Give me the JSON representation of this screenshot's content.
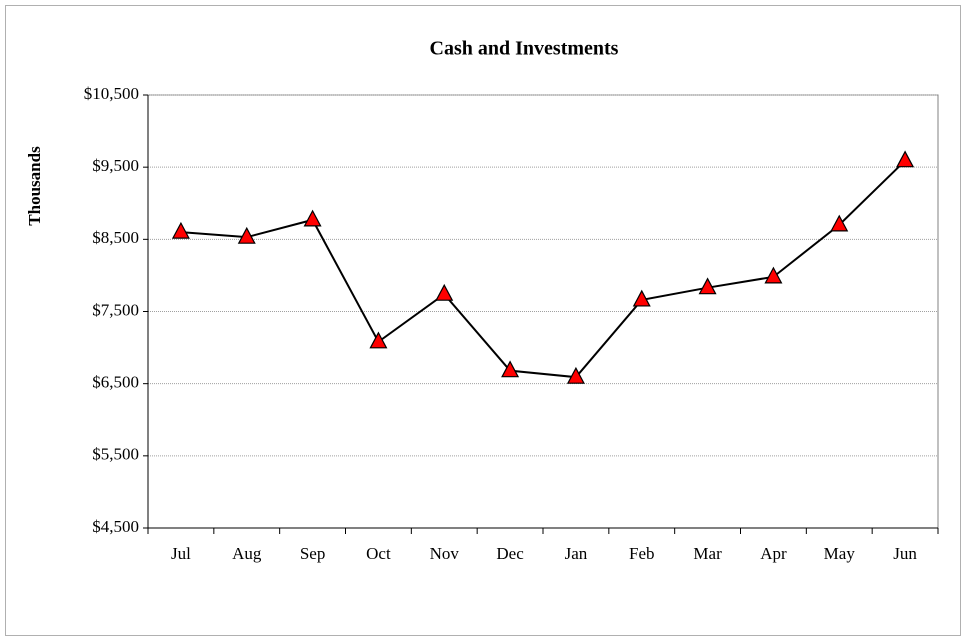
{
  "chart_data": {
    "type": "line",
    "title": "Cash and Investments",
    "y_label": "Thousands",
    "categories": [
      "Jul",
      "Aug",
      "Sep",
      "Oct",
      "Nov",
      "Dec",
      "Jan",
      "Feb",
      "Mar",
      "Apr",
      "May",
      "Jun"
    ],
    "series": [
      {
        "name": "Cash and Investments",
        "color": "#000000",
        "marker_color": "#ff0000",
        "values": [
          8600,
          8530,
          8770,
          7080,
          7740,
          6680,
          6590,
          7660,
          7830,
          7980,
          8700,
          9590
        ]
      }
    ],
    "ylim": [
      4500,
      10500
    ],
    "yticks": [
      {
        "value": 4500,
        "label": "$4,500"
      },
      {
        "value": 5500,
        "label": "$5,500"
      },
      {
        "value": 6500,
        "label": "$6,500"
      },
      {
        "value": 7500,
        "label": "$7,500"
      },
      {
        "value": 8500,
        "label": "$8,500"
      },
      {
        "value": 9500,
        "label": "$9,500"
      },
      {
        "value": 10500,
        "label": "$10,500"
      }
    ],
    "grid": true
  }
}
